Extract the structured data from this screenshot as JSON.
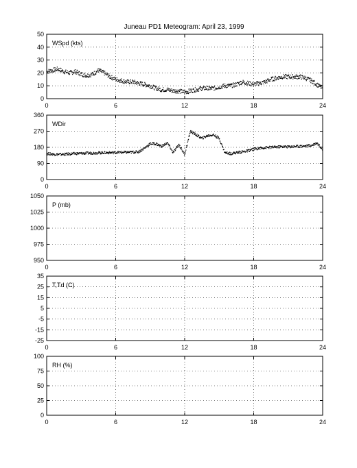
{
  "figure": {
    "title": "Juneau PD1 Meteogram:     April 23, 1999"
  },
  "chart_data": [
    {
      "type": "scatter",
      "label": "WSpd (kts)",
      "xlim": [
        0,
        24
      ],
      "ylim": [
        0,
        50
      ],
      "xticks": [
        0,
        6,
        12,
        18,
        24
      ],
      "yticks": [
        0,
        10,
        20,
        30,
        40,
        50
      ],
      "grid": "dotted",
      "series": [
        {
          "x": [
            0,
            0.5,
            1,
            1.5,
            2,
            2.5,
            3,
            3.5,
            4,
            4.5,
            5,
            5.5,
            6,
            6.5,
            7,
            7.5,
            8,
            8.5,
            9,
            9.5,
            10,
            10.5,
            11,
            11.5,
            12,
            12.5,
            13,
            13.5,
            14,
            14.5,
            15,
            15.5,
            16,
            16.5,
            17,
            17.5,
            18,
            18.5,
            19,
            19.5,
            20,
            20.5,
            21,
            21.5,
            22,
            22.5,
            23,
            23.5,
            24
          ],
          "y": [
            21,
            22,
            23,
            21,
            20,
            21,
            19,
            18,
            19,
            22,
            20,
            17,
            15,
            14,
            13,
            13,
            12,
            11,
            10,
            8,
            7,
            7,
            6,
            6,
            5,
            6,
            7,
            8,
            8,
            8,
            9,
            10,
            10,
            11,
            13,
            12,
            11,
            12,
            13,
            15,
            16,
            17,
            17,
            17,
            17,
            16,
            14,
            11,
            8
          ]
        }
      ]
    },
    {
      "type": "scatter",
      "label": "WDir",
      "xlim": [
        0,
        24
      ],
      "ylim": [
        0,
        360
      ],
      "xticks": [
        0,
        6,
        12,
        18,
        24
      ],
      "yticks": [
        0,
        90,
        180,
        270,
        360
      ],
      "grid": "dotted",
      "series": [
        {
          "x": [
            0,
            0.5,
            1,
            1.5,
            2,
            2.5,
            3,
            3.5,
            4,
            4.5,
            5,
            5.5,
            6,
            6.5,
            7,
            7.5,
            8,
            8.5,
            9,
            9.5,
            10,
            10.5,
            11,
            11.5,
            12,
            12.5,
            13,
            13.5,
            14,
            14.5,
            15,
            15.5,
            16,
            16.5,
            17,
            17.5,
            18,
            18.5,
            19,
            19.5,
            20,
            20.5,
            21,
            21.5,
            22,
            22.5,
            23,
            23.5,
            24
          ],
          "y": [
            145,
            142,
            140,
            141,
            143,
            145,
            146,
            147,
            148,
            149,
            150,
            150,
            151,
            152,
            152,
            153,
            155,
            175,
            200,
            200,
            185,
            205,
            150,
            195,
            140,
            270,
            250,
            230,
            245,
            250,
            230,
            150,
            145,
            150,
            155,
            160,
            170,
            175,
            178,
            180,
            182,
            184,
            183,
            185,
            186,
            187,
            190,
            205,
            170
          ]
        }
      ]
    },
    {
      "type": "scatter",
      "label": "P (mb)",
      "xlim": [
        0,
        24
      ],
      "ylim": [
        950,
        1050
      ],
      "xticks": [
        0,
        6,
        12,
        18,
        24
      ],
      "yticks": [
        950,
        975,
        1000,
        1025,
        1050
      ],
      "grid": "dotted",
      "series": []
    },
    {
      "type": "scatter",
      "label": "T,Td (C)",
      "xlim": [
        0,
        24
      ],
      "ylim": [
        -25,
        35
      ],
      "xticks": [
        0,
        6,
        12,
        18,
        24
      ],
      "yticks": [
        -25,
        -15,
        -5,
        5,
        15,
        25,
        35
      ],
      "ytick_labels": [
        "-25",
        "-15",
        "-5",
        "5",
        "15",
        "25",
        "35"
      ],
      "grid": "dotted",
      "series": []
    },
    {
      "type": "scatter",
      "label": "RH (%)",
      "xlim": [
        0,
        24
      ],
      "ylim": [
        0,
        100
      ],
      "xticks": [
        0,
        6,
        12,
        18,
        24
      ],
      "yticks": [
        0,
        25,
        50,
        75,
        100
      ],
      "grid": "dotted",
      "series": []
    }
  ]
}
